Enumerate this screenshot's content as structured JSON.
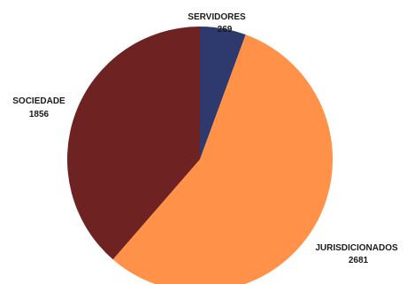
{
  "chart_data": {
    "type": "pie",
    "slices": [
      {
        "label": "SERVIDORES",
        "value": 269,
        "value_label": "269",
        "color": "#2e3a6e"
      },
      {
        "label": "JURISDICIONADOS",
        "value": 2681,
        "value_label": "2681",
        "color": "#ff9148"
      },
      {
        "label": "SOCIEDADE",
        "value": 1856,
        "value_label": "1856",
        "color": "#6e2222"
      }
    ],
    "start_angle": "12 o'clock",
    "direction": "clockwise"
  }
}
